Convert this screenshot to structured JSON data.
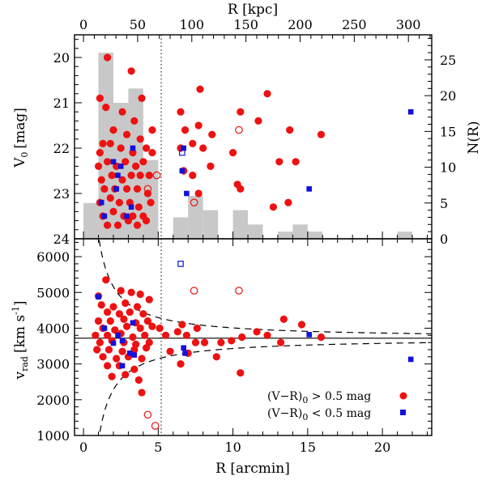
{
  "chart_data": [
    {
      "type": "scatter",
      "panel": "top",
      "ylabel_main": "V",
      "ylabel_sub": "0",
      "ylabel_unit": "[mag]",
      "y2label": "N(R)",
      "top_axis_label": "R [kpc]",
      "xlim": [
        -0.6,
        23.3
      ],
      "ylim": [
        24,
        19.5
      ],
      "y2lim": [
        0,
        28.5
      ],
      "top_axis_kpc_per_arcmin": 13.8,
      "top_axis_ticks": [
        0,
        50,
        100,
        150,
        200,
        250,
        300
      ],
      "top_axis_ticklabels": [
        "0",
        "50",
        "100",
        "150",
        "200",
        "250",
        "300"
      ],
      "y_ticks": [
        20,
        21,
        22,
        23,
        24
      ],
      "y_ticklabels": [
        "20",
        "21",
        "22",
        "23",
        "24"
      ],
      "y2_ticks": [
        0,
        5,
        10,
        15,
        20,
        25
      ],
      "y2_ticklabels": [
        "0",
        "5",
        "10",
        "15",
        "20",
        "25"
      ],
      "histogram": {
        "bin_width": 1.0,
        "bins": [
          {
            "x0": 0.0,
            "count": 5
          },
          {
            "x0": 1.0,
            "count": 26
          },
          {
            "x0": 2.0,
            "count": 19
          },
          {
            "x0": 3.0,
            "count": 21
          },
          {
            "x0": 4.0,
            "count": 11
          },
          {
            "x0": 5.0,
            "count": 0
          },
          {
            "x0": 6.0,
            "count": 3
          },
          {
            "x0": 7.0,
            "count": 6
          },
          {
            "x0": 8.0,
            "count": 4
          },
          {
            "x0": 9.0,
            "count": 0
          },
          {
            "x0": 10.0,
            "count": 4
          },
          {
            "x0": 11.0,
            "count": 2
          },
          {
            "x0": 13.0,
            "count": 1
          },
          {
            "x0": 14.0,
            "count": 2
          },
          {
            "x0": 15.0,
            "count": 1
          },
          {
            "x0": 21.0,
            "count": 1
          }
        ],
        "color": "#c8c8c8"
      },
      "series": [
        {
          "name": "red_filled",
          "marker": "filled-circle",
          "color": "#ee1111",
          "points": [
            [
              1.6,
              20.0
            ],
            [
              3.2,
              20.3
            ],
            [
              1.1,
              20.9
            ],
            [
              3.9,
              20.9
            ],
            [
              1.5,
              21.1
            ],
            [
              2.6,
              21.2
            ],
            [
              3.4,
              21.4
            ],
            [
              4.6,
              21.6
            ],
            [
              1.3,
              21.9
            ],
            [
              2.0,
              21.6
            ],
            [
              2.9,
              21.7
            ],
            [
              3.8,
              21.8
            ],
            [
              1.1,
              22.1
            ],
            [
              1.8,
              21.9
            ],
            [
              2.5,
              22.0
            ],
            [
              3.3,
              22.1
            ],
            [
              4.2,
              22.0
            ],
            [
              4.6,
              22.1
            ],
            [
              1.0,
              22.4
            ],
            [
              1.6,
              22.3
            ],
            [
              2.2,
              22.4
            ],
            [
              2.8,
              22.3
            ],
            [
              3.5,
              22.4
            ],
            [
              4.0,
              22.3
            ],
            [
              1.2,
              22.7
            ],
            [
              1.9,
              22.6
            ],
            [
              2.6,
              22.7
            ],
            [
              3.2,
              22.6
            ],
            [
              3.8,
              22.6
            ],
            [
              4.4,
              22.6
            ],
            [
              1.4,
              22.9
            ],
            [
              2.1,
              22.9
            ],
            [
              2.9,
              22.9
            ],
            [
              3.6,
              22.9
            ],
            [
              4.3,
              23.0
            ],
            [
              1.1,
              23.2
            ],
            [
              1.8,
              23.1
            ],
            [
              2.4,
              23.2
            ],
            [
              3.1,
              23.2
            ],
            [
              3.7,
              23.3
            ],
            [
              4.5,
              23.2
            ],
            [
              1.3,
              23.5
            ],
            [
              2.0,
              23.4
            ],
            [
              2.7,
              23.5
            ],
            [
              3.3,
              23.5
            ],
            [
              4.0,
              23.5
            ],
            [
              1.6,
              23.7
            ],
            [
              2.3,
              23.7
            ],
            [
              3.0,
              23.6
            ],
            [
              3.6,
              23.7
            ],
            [
              4.2,
              23.6
            ],
            [
              7.8,
              20.7
            ],
            [
              6.5,
              21.2
            ],
            [
              7.7,
              21.5
            ],
            [
              10.5,
              21.2
            ],
            [
              11.7,
              21.4
            ],
            [
              12.3,
              20.8
            ],
            [
              6.8,
              21.6
            ],
            [
              7.3,
              21.9
            ],
            [
              8.6,
              21.7
            ],
            [
              8.0,
              22.0
            ],
            [
              13.8,
              21.6
            ],
            [
              15.9,
              21.7
            ],
            [
              6.5,
              22.0
            ],
            [
              10.0,
              22.1
            ],
            [
              6.7,
              22.5
            ],
            [
              7.3,
              22.6
            ],
            [
              8.5,
              22.4
            ],
            [
              13.1,
              22.3
            ],
            [
              14.2,
              22.3
            ],
            [
              10.5,
              22.9
            ],
            [
              7.7,
              23.0
            ],
            [
              10.3,
              22.8
            ],
            [
              13.7,
              23.2
            ],
            [
              12.7,
              23.3
            ]
          ]
        },
        {
          "name": "red_open",
          "marker": "open-circle",
          "color": "#ee1111",
          "points": [
            [
              4.3,
              22.9
            ],
            [
              4.9,
              22.6
            ],
            [
              7.4,
              23.2
            ],
            [
              10.4,
              21.6
            ]
          ]
        },
        {
          "name": "blue_filled",
          "marker": "filled-square",
          "color": "#1111dd",
          "points": [
            [
              3.3,
              22.0
            ],
            [
              2.0,
              22.3
            ],
            [
              2.3,
              22.6
            ],
            [
              1.2,
              23.2
            ],
            [
              2.5,
              22.4
            ],
            [
              2.2,
              22.9
            ],
            [
              2.9,
              23.5
            ],
            [
              1.4,
              23.5
            ],
            [
              3.2,
              23.3
            ],
            [
              6.7,
              22.0
            ],
            [
              6.6,
              22.5
            ],
            [
              6.9,
              23.0
            ],
            [
              15.1,
              22.9
            ],
            [
              21.9,
              21.2
            ]
          ]
        },
        {
          "name": "blue_open",
          "marker": "open-square",
          "color": "#1111dd",
          "points": [
            [
              6.6,
              22.1
            ]
          ]
        }
      ],
      "dotted_vline_x": 5.2
    },
    {
      "type": "scatter",
      "panel": "bottom",
      "xlabel": "R [arcmin]",
      "ylabel_main": "v",
      "ylabel_sub": "rad",
      "ylabel_unit": "[km s",
      "ylabel_unit_sup": "-1",
      "ylabel_unit_end": "]",
      "xlim": [
        -0.6,
        23.3
      ],
      "ylim": [
        1000,
        6500
      ],
      "x_ticks": [
        0,
        5,
        10,
        15,
        20
      ],
      "x_ticklabels": [
        "0",
        "5",
        "10",
        "15",
        "20"
      ],
      "y_ticks": [
        1000,
        2000,
        3000,
        4000,
        5000,
        6000
      ],
      "y_ticklabels": [
        "1000",
        "2000",
        "3000",
        "4000",
        "5000",
        "6000"
      ],
      "hline_y": 3720,
      "dotted_vline_x": 5.2,
      "envelope": {
        "center": 3720,
        "amplitude_km_s_arcmin": 2880,
        "style": "dashed"
      },
      "series": [
        {
          "name": "(V-R)0 > 0.5 mag",
          "marker": "filled-circle",
          "color": "#ee1111",
          "points": [
            [
              1.5,
              5350
            ],
            [
              1.0,
              4900
            ],
            [
              2.5,
              5050
            ],
            [
              3.2,
              5000
            ],
            [
              3.8,
              4950
            ],
            [
              4.4,
              4800
            ],
            [
              1.2,
              4650
            ],
            [
              2.0,
              4600
            ],
            [
              2.8,
              4700
            ],
            [
              3.6,
              4600
            ],
            [
              1.6,
              4450
            ],
            [
              2.4,
              4400
            ],
            [
              3.1,
              4450
            ],
            [
              4.0,
              4400
            ],
            [
              1.0,
              4200
            ],
            [
              1.8,
              4200
            ],
            [
              2.7,
              4250
            ],
            [
              3.5,
              4150
            ],
            [
              4.3,
              4200
            ],
            [
              1.3,
              4000
            ],
            [
              2.1,
              3950
            ],
            [
              2.9,
              4050
            ],
            [
              3.8,
              4000
            ],
            [
              4.6,
              4050
            ],
            [
              0.8,
              3800
            ],
            [
              1.6,
              3800
            ],
            [
              2.5,
              3850
            ],
            [
              3.3,
              3750
            ],
            [
              4.1,
              3800
            ],
            [
              1.1,
              3600
            ],
            [
              1.9,
              3650
            ],
            [
              2.7,
              3600
            ],
            [
              3.5,
              3550
            ],
            [
              4.4,
              3600
            ],
            [
              0.9,
              3400
            ],
            [
              1.7,
              3400
            ],
            [
              2.6,
              3350
            ],
            [
              3.4,
              3400
            ],
            [
              4.2,
              3450
            ],
            [
              1.3,
              3200
            ],
            [
              2.2,
              3150
            ],
            [
              3.0,
              3200
            ],
            [
              3.9,
              3150
            ],
            [
              1.6,
              2950
            ],
            [
              2.4,
              2950
            ],
            [
              3.4,
              2850
            ],
            [
              1.9,
              2650
            ],
            [
              2.8,
              2700
            ],
            [
              3.7,
              2550
            ],
            [
              3.9,
              2200
            ],
            [
              5.1,
              4000
            ],
            [
              5.5,
              3800
            ],
            [
              6.3,
              3900
            ],
            [
              6.6,
              4100
            ],
            [
              6.9,
              3800
            ],
            [
              7.6,
              4000
            ],
            [
              7.5,
              3600
            ],
            [
              8.1,
              3600
            ],
            [
              9.2,
              3600
            ],
            [
              9.9,
              3650
            ],
            [
              10.6,
              3750
            ],
            [
              11.6,
              3900
            ],
            [
              12.3,
              3800
            ],
            [
              13.2,
              3600
            ],
            [
              13.4,
              4250
            ],
            [
              14.6,
              4100
            ],
            [
              15.9,
              3750
            ],
            [
              5.8,
              3350
            ],
            [
              7.0,
              3300
            ],
            [
              8.9,
              3200
            ],
            [
              10.5,
              2750
            ],
            [
              6.5,
              3000
            ]
          ]
        },
        {
          "name": "(V-R)0 < 0.5 mag",
          "marker": "filled-square",
          "color": "#1111dd",
          "points": [
            [
              1.0,
              4880
            ],
            [
              3.3,
              4150
            ],
            [
              1.4,
              4000
            ],
            [
              2.3,
              3800
            ],
            [
              2.6,
              3650
            ],
            [
              2.0,
              3580
            ],
            [
              3.1,
              3300
            ],
            [
              3.4,
              3250
            ],
            [
              2.6,
              2950
            ],
            [
              6.7,
              3450
            ],
            [
              6.8,
              3300
            ],
            [
              15.1,
              3820
            ],
            [
              21.9,
              3130
            ]
          ]
        },
        {
          "name": "red_open",
          "marker": "open-circle",
          "color": "#ee1111",
          "points": [
            [
              7.4,
              5050
            ],
            [
              10.4,
              5050
            ],
            [
              4.3,
              1580
            ],
            [
              4.8,
              1270
            ]
          ]
        },
        {
          "name": "blue_open",
          "marker": "open-square",
          "color": "#1111dd",
          "points": [
            [
              6.5,
              5800
            ]
          ]
        }
      ],
      "legend": {
        "position": "bottom-right",
        "entries": [
          {
            "label_main": "(V−R)",
            "label_sub": "0",
            "label_rest": " > 0.5 mag",
            "marker": "filled-circle",
            "color": "#ee1111"
          },
          {
            "label_main": "(V−R)",
            "label_sub": "0",
            "label_rest": " < 0.5 mag",
            "marker": "filled-square",
            "color": "#1111dd"
          }
        ]
      }
    }
  ]
}
